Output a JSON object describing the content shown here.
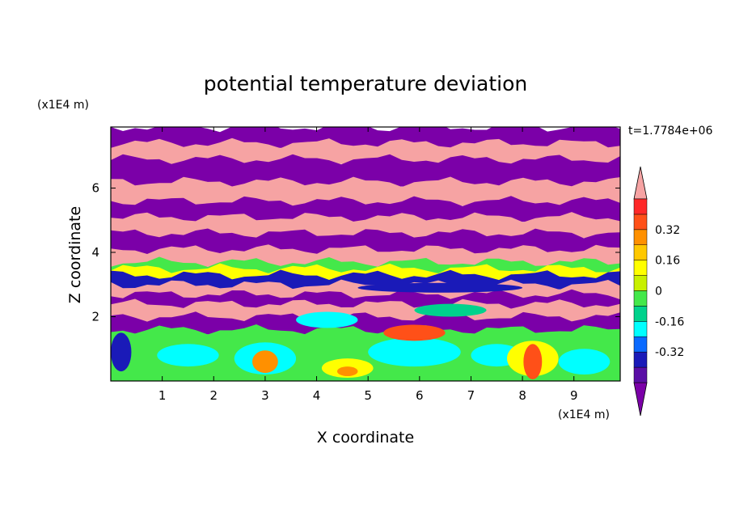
{
  "chart_data": {
    "type": "heatmap",
    "title": "potential temperature deviation",
    "xlabel": "X coordinate",
    "ylabel": "Z coordinate",
    "x_unit": "(x1E4 m)",
    "y_unit": "(x1E4 m)",
    "time_label": "t=1.7784e+06",
    "xlim": [
      0,
      9.9
    ],
    "ylim": [
      0,
      7.9
    ],
    "x_ticks": [
      1,
      2,
      3,
      4,
      5,
      6,
      7,
      8,
      9
    ],
    "y_ticks": [
      2,
      4,
      6
    ],
    "grid": false,
    "colorbar": {
      "placement": "right",
      "labels": [
        "0.32",
        "0.16",
        "0",
        "-0.16",
        "-0.32"
      ],
      "label_values": [
        0.32,
        0.16,
        0,
        -0.16,
        -0.32
      ],
      "levels_bottom_to_top": [
        {
          "color": "#7b00a8"
        },
        {
          "color": "#5a0ea6"
        },
        {
          "color": "#1a1ab8"
        },
        {
          "color": "#0a6aff"
        },
        {
          "color": "#00ffff"
        },
        {
          "color": "#00d28c"
        },
        {
          "color": "#44e84a"
        },
        {
          "color": "#c8f000"
        },
        {
          "color": "#ffff00"
        },
        {
          "color": "#ffc800"
        },
        {
          "color": "#ff9000"
        },
        {
          "color": "#ff5018"
        },
        {
          "color": "#ff2828"
        },
        {
          "color": "#f6a3a3"
        }
      ]
    },
    "bands": [
      {
        "z": [
          7.4,
          7.9
        ],
        "color": "#7b00a8"
      },
      {
        "z": [
          6.9,
          7.4
        ],
        "color": "#f6a3a3"
      },
      {
        "z": [
          6.2,
          6.9
        ],
        "color": "#7b00a8"
      },
      {
        "z": [
          5.6,
          6.2
        ],
        "color": "#f6a3a3"
      },
      {
        "z": [
          5.1,
          5.6
        ],
        "color": "#7b00a8"
      },
      {
        "z": [
          4.6,
          5.1
        ],
        "color": "#f6a3a3"
      },
      {
        "z": [
          4.1,
          4.6
        ],
        "color": "#7b00a8"
      },
      {
        "z": [
          3.7,
          4.1
        ],
        "color": "#f6a3a3"
      },
      {
        "z": [
          3.5,
          3.7
        ],
        "color": "#44e84a"
      },
      {
        "z": [
          3.3,
          3.5
        ],
        "color": "#ffff00"
      },
      {
        "z": [
          3.0,
          3.3
        ],
        "color": "#1a1ab8"
      },
      {
        "z": [
          2.7,
          3.0
        ],
        "color": "#f6a3a3"
      },
      {
        "z": [
          2.4,
          2.7
        ],
        "color": "#7b00a8"
      },
      {
        "z": [
          2.0,
          2.4
        ],
        "color": "#f6a3a3"
      },
      {
        "z": [
          1.6,
          2.0
        ],
        "color": "#7b00a8"
      },
      {
        "z": [
          0.0,
          1.6
        ],
        "color": "#44e84a"
      }
    ],
    "patches": [
      {
        "x": 3.0,
        "z": 0.7,
        "rx": 0.6,
        "rz": 0.5,
        "color": "#00ffff"
      },
      {
        "x": 3.0,
        "z": 0.6,
        "rx": 0.25,
        "rz": 0.35,
        "color": "#ff9000"
      },
      {
        "x": 1.5,
        "z": 0.8,
        "rx": 0.6,
        "rz": 0.35,
        "color": "#00ffff"
      },
      {
        "x": 4.6,
        "z": 0.4,
        "rx": 0.5,
        "rz": 0.3,
        "color": "#ffff00"
      },
      {
        "x": 4.6,
        "z": 0.3,
        "rx": 0.2,
        "rz": 0.15,
        "color": "#ff9000"
      },
      {
        "x": 5.9,
        "z": 0.9,
        "rx": 0.9,
        "rz": 0.45,
        "color": "#00ffff"
      },
      {
        "x": 5.9,
        "z": 1.5,
        "rx": 0.6,
        "rz": 0.25,
        "color": "#ff5018"
      },
      {
        "x": 7.5,
        "z": 0.8,
        "rx": 0.5,
        "rz": 0.35,
        "color": "#00ffff"
      },
      {
        "x": 8.2,
        "z": 0.7,
        "rx": 0.5,
        "rz": 0.55,
        "color": "#ffff00"
      },
      {
        "x": 8.2,
        "z": 0.6,
        "rx": 0.18,
        "rz": 0.55,
        "color": "#ff5018"
      },
      {
        "x": 9.2,
        "z": 0.6,
        "rx": 0.5,
        "rz": 0.4,
        "color": "#00ffff"
      },
      {
        "x": 0.2,
        "z": 0.9,
        "rx": 0.2,
        "rz": 0.6,
        "color": "#1a1ab8"
      },
      {
        "x": 6.4,
        "z": 2.9,
        "rx": 1.6,
        "rz": 0.15,
        "color": "#1a1ab8"
      },
      {
        "x": 4.2,
        "z": 1.9,
        "rx": 0.6,
        "rz": 0.25,
        "color": "#00ffff"
      },
      {
        "x": 6.6,
        "z": 2.2,
        "rx": 0.7,
        "rz": 0.2,
        "color": "#00d28c"
      }
    ]
  }
}
